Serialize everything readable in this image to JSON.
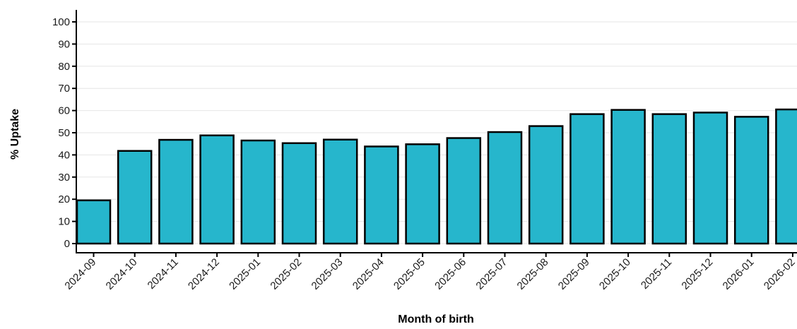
{
  "chart_data": {
    "type": "bar",
    "title": "",
    "xlabel": "Month of birth",
    "ylabel": "% Uptake",
    "categories": [
      "2024-09",
      "2024-10",
      "2024-11",
      "2024-12",
      "2025-01",
      "2025-02",
      "2025-03",
      "2025-04",
      "2025-05",
      "2025-06",
      "2025-07",
      "2025-08",
      "2025-09",
      "2025-10",
      "2025-11",
      "2025-12",
      "2026-01",
      "2026-02"
    ],
    "values": [
      19.5,
      41.8,
      46.8,
      48.8,
      46.5,
      45.3,
      46.9,
      43.8,
      44.8,
      47.6,
      50.3,
      53.0,
      58.4,
      60.3,
      58.4,
      59.1,
      57.2,
      60.5
    ],
    "ylim": [
      0,
      100
    ],
    "yticks": [
      0,
      10,
      20,
      30,
      40,
      50,
      60,
      70,
      80,
      90,
      100
    ],
    "grid": "horizontal",
    "legend": "none",
    "bar_color": "#26b6cc"
  }
}
